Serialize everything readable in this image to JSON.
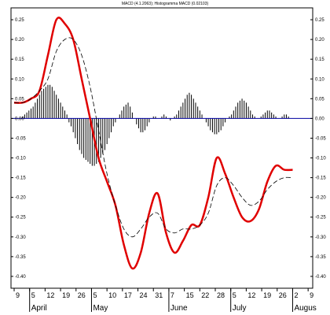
{
  "chart_data": {
    "type": "line",
    "title": "MACD (4.1.2063); Histogramma MACD (0.02103)",
    "y_ticks": [
      "0.25",
      "0.20",
      "0.15",
      "0.10",
      "0.05",
      "0.00",
      "-0.05",
      "-0.10",
      "-0.15",
      "-0.20",
      "-0.25",
      "-0.30",
      "-0.35",
      "-0.40"
    ],
    "right_ticks": [
      "0.25",
      "0.20",
      "0.15",
      "0.10",
      "0.05",
      "0.00",
      "-0.05",
      "-0.10",
      "-0.15",
      "-0.20",
      "-0.25",
      "-0.30",
      "-0.35",
      "-0.40"
    ],
    "ylim": [
      -0.43,
      0.28
    ],
    "date_labels": [
      "9",
      "5",
      "12",
      "19",
      "26",
      "5",
      "10",
      "17",
      "24",
      "31",
      "7",
      "15",
      "22",
      "28",
      "5",
      "12",
      "19",
      "26",
      "2",
      "9"
    ],
    "month_labels": [
      "April",
      "May",
      "June",
      "July",
      "Augus"
    ],
    "colors": {
      "macd": "#e00000",
      "signal": "#000000",
      "zero": "#0000a0",
      "hist": "#000000"
    },
    "series": [
      {
        "name": "MACD",
        "x": [
          0,
          4,
          8,
          12,
          16,
          20,
          24,
          28,
          32,
          36,
          40,
          44,
          48,
          52,
          56,
          60,
          64,
          68,
          72,
          76,
          80,
          84,
          88,
          92,
          96,
          100,
          104,
          108,
          112,
          116,
          120,
          124,
          128,
          132
        ],
        "values": [
          0.04,
          0.04,
          0.05,
          0.07,
          0.16,
          0.25,
          0.24,
          0.2,
          0.1,
          0.0,
          -0.1,
          -0.16,
          -0.22,
          -0.32,
          -0.38,
          -0.34,
          -0.24,
          -0.19,
          -0.29,
          -0.34,
          -0.31,
          -0.27,
          -0.27,
          -0.2,
          -0.1,
          -0.14,
          -0.2,
          -0.25,
          -0.26,
          -0.23,
          -0.16,
          -0.12,
          -0.13,
          -0.13
        ]
      },
      {
        "name": "Signal",
        "x": [
          0,
          4,
          8,
          12,
          16,
          20,
          24,
          28,
          32,
          36,
          40,
          44,
          48,
          52,
          56,
          60,
          64,
          68,
          72,
          76,
          80,
          84,
          88,
          92,
          96,
          100,
          104,
          108,
          112,
          116,
          120,
          124,
          128,
          132
        ],
        "values": [
          0.04,
          0.04,
          0.05,
          0.07,
          0.1,
          0.17,
          0.2,
          0.2,
          0.16,
          0.08,
          -0.03,
          -0.14,
          -0.22,
          -0.28,
          -0.3,
          -0.28,
          -0.25,
          -0.24,
          -0.28,
          -0.29,
          -0.28,
          -0.28,
          -0.27,
          -0.24,
          -0.17,
          -0.15,
          -0.17,
          -0.2,
          -0.22,
          -0.21,
          -0.18,
          -0.16,
          -0.15,
          -0.15
        ]
      }
    ],
    "histogram": {
      "name": "Histogramma MACD",
      "x": [
        4,
        5,
        6,
        7,
        8,
        9,
        10,
        11,
        12,
        13,
        14,
        15,
        16,
        17,
        18,
        19,
        20,
        21,
        22,
        23,
        24,
        25,
        26,
        27,
        28,
        29,
        30,
        31,
        32,
        33,
        34,
        35,
        36,
        37,
        38,
        39,
        40,
        41,
        42,
        43,
        44,
        45,
        46,
        47,
        48,
        49,
        50,
        51,
        52,
        53,
        54,
        55,
        56,
        57,
        58,
        59,
        60,
        61,
        62,
        63,
        64,
        65,
        66,
        67,
        68,
        69,
        70,
        71,
        72,
        73,
        74,
        75,
        76,
        77,
        78,
        79,
        80,
        81,
        82,
        83,
        84,
        85,
        86,
        87,
        88,
        89,
        90,
        91,
        92,
        93,
        94,
        95,
        96,
        97,
        98,
        99,
        100,
        101,
        102,
        103,
        104,
        105,
        106,
        107,
        108,
        109,
        110,
        111,
        112,
        113,
        114,
        115,
        116,
        117,
        118,
        119,
        120,
        121,
        122,
        123,
        124,
        125,
        126,
        127,
        128,
        129,
        130,
        131,
        132
      ],
      "values": [
        0.005,
        0.01,
        0.015,
        0.02,
        0.025,
        0.03,
        0.04,
        0.05,
        0.06,
        0.07,
        0.075,
        0.08,
        0.085,
        0.085,
        0.08,
        0.07,
        0.06,
        0.05,
        0.04,
        0.03,
        0.02,
        0.01,
        -0.01,
        -0.02,
        -0.035,
        -0.05,
        -0.065,
        -0.08,
        -0.09,
        -0.1,
        -0.105,
        -0.11,
        -0.115,
        -0.12,
        -0.12,
        -0.115,
        -0.11,
        -0.1,
        -0.09,
        -0.08,
        -0.065,
        -0.05,
        -0.035,
        -0.02,
        -0.01,
        0.0,
        0.01,
        0.02,
        0.03,
        0.035,
        0.04,
        0.03,
        0.015,
        0.0,
        -0.015,
        -0.025,
        -0.035,
        -0.035,
        -0.03,
        -0.02,
        -0.01,
        0.0,
        0.005,
        0.005,
        0.0,
        0.0,
        0.005,
        0.01,
        0.005,
        0.0,
        -0.005,
        0.0,
        0.005,
        0.01,
        0.02,
        0.03,
        0.04,
        0.05,
        0.06,
        0.065,
        0.06,
        0.05,
        0.04,
        0.03,
        0.02,
        0.01,
        0.0,
        -0.01,
        -0.02,
        -0.03,
        -0.035,
        -0.04,
        -0.04,
        -0.035,
        -0.03,
        -0.02,
        -0.01,
        0.0,
        0.005,
        0.01,
        0.02,
        0.03,
        0.04,
        0.045,
        0.05,
        0.045,
        0.04,
        0.03,
        0.02,
        0.01,
        0.005,
        0.0,
        0.0,
        0.005,
        0.01,
        0.015,
        0.02,
        0.02,
        0.015,
        0.01,
        0.005,
        0.0,
        0.0,
        0.005,
        0.01,
        0.01,
        0.005,
        0.0,
        0.0
      ]
    },
    "grid": false
  }
}
